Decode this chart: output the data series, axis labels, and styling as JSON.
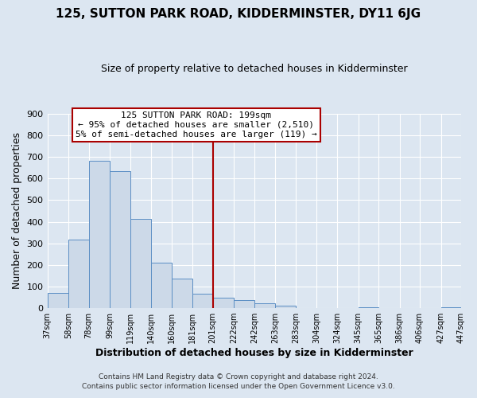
{
  "title": "125, SUTTON PARK ROAD, KIDDERMINSTER, DY11 6JG",
  "subtitle": "Size of property relative to detached houses in Kidderminster",
  "xlabel": "Distribution of detached houses by size in Kidderminster",
  "ylabel": "Number of detached properties",
  "bar_color": "#ccd9e8",
  "bar_edge_color": "#5b8ec4",
  "background_color": "#dce6f1",
  "plot_bg_color": "#dce6f1",
  "grid_color": "#ffffff",
  "vline_x": 201,
  "vline_color": "#aa0000",
  "bin_edges": [
    37,
    58,
    78,
    99,
    119,
    140,
    160,
    181,
    201,
    222,
    242,
    263,
    283,
    304,
    324,
    345,
    365,
    386,
    406,
    427,
    447
  ],
  "bin_heights": [
    72,
    318,
    683,
    635,
    413,
    210,
    138,
    68,
    48,
    36,
    22,
    10,
    0,
    0,
    0,
    5,
    0,
    0,
    0,
    5
  ],
  "ylim": [
    0,
    900
  ],
  "yticks": [
    0,
    100,
    200,
    300,
    400,
    500,
    600,
    700,
    800,
    900
  ],
  "xtick_labels": [
    "37sqm",
    "58sqm",
    "78sqm",
    "99sqm",
    "119sqm",
    "140sqm",
    "160sqm",
    "181sqm",
    "201sqm",
    "222sqm",
    "242sqm",
    "263sqm",
    "283sqm",
    "304sqm",
    "324sqm",
    "345sqm",
    "365sqm",
    "386sqm",
    "406sqm",
    "427sqm",
    "447sqm"
  ],
  "annotation_title": "125 SUTTON PARK ROAD: 199sqm",
  "annotation_line1": "← 95% of detached houses are smaller (2,510)",
  "annotation_line2": "5% of semi-detached houses are larger (119) →",
  "annotation_box_color": "#ffffff",
  "annotation_box_edge": "#aa0000",
  "footnote1": "Contains HM Land Registry data © Crown copyright and database right 2024.",
  "footnote2": "Contains public sector information licensed under the Open Government Licence v3.0."
}
